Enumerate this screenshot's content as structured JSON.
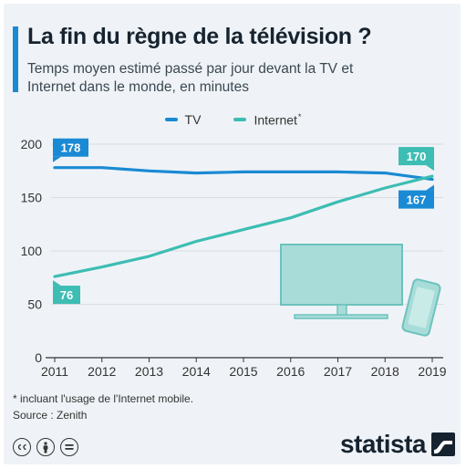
{
  "title": "La fin du règne de la télévision ?",
  "subtitle": "Temps moyen estimé passé par jour devant la TV et Internet dans le monde, en minutes",
  "legend": {
    "tv": "TV",
    "internet": "Internet",
    "internet_note": "*"
  },
  "colors": {
    "tv": "#1a8ad4",
    "internet": "#3dbdb3",
    "background": "#eff3f7",
    "axis": "#333333",
    "grid": "#d7dde3",
    "illustration": "#a8dcd8"
  },
  "chart_data": {
    "type": "line",
    "title": "",
    "xlabel": "",
    "ylabel": "",
    "x": [
      2011,
      2012,
      2013,
      2014,
      2015,
      2016,
      2017,
      2018,
      2019
    ],
    "ylim": [
      0,
      200
    ],
    "yticks": [
      0,
      50,
      100,
      150,
      200
    ],
    "grid": true,
    "legend_position": "top-center",
    "series": [
      {
        "name": "TV",
        "values": [
          178,
          178,
          175,
          173,
          174,
          174,
          174,
          173,
          167
        ]
      },
      {
        "name": "Internet",
        "values": [
          76,
          85,
          95,
          109,
          120,
          131,
          146,
          159,
          170
        ]
      }
    ],
    "annotations": [
      {
        "series": "TV",
        "x": 2011,
        "label": "178"
      },
      {
        "series": "TV",
        "x": 2019,
        "label": "167"
      },
      {
        "series": "Internet",
        "x": 2011,
        "label": "76"
      },
      {
        "series": "Internet",
        "x": 2019,
        "label": "170"
      }
    ]
  },
  "footnote": {
    "note": "* incluant l'usage de l'Internet mobile.",
    "source": "Source : Zenith"
  },
  "license": [
    "cc",
    "by",
    "nd"
  ],
  "brand": {
    "name": "statista",
    "logo_icon": "statista-wave-icon"
  }
}
